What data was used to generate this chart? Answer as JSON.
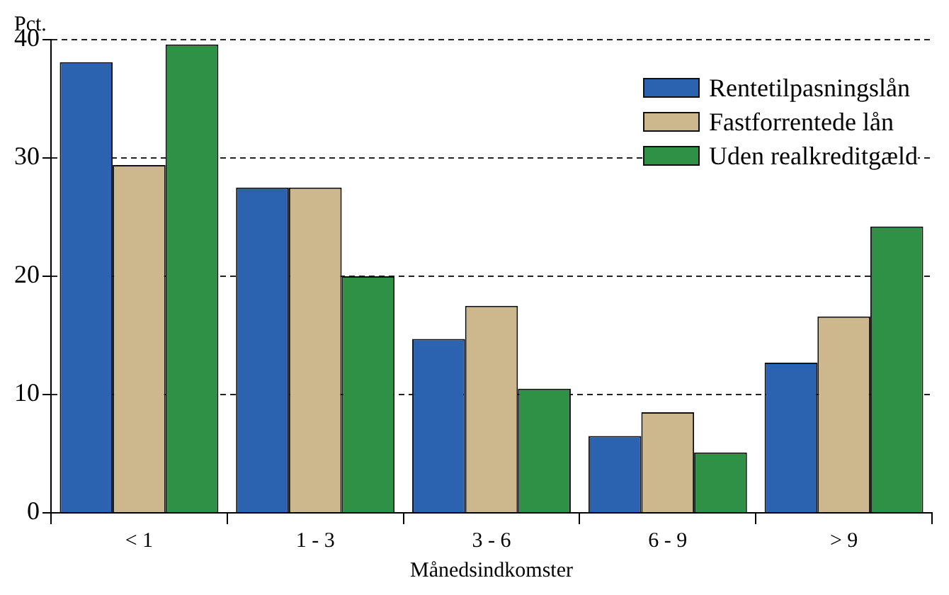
{
  "chart_data": {
    "type": "bar",
    "ylabel": "Pct.",
    "xlabel": "Månedsindkomster",
    "categories": [
      "< 1",
      "1 - 3",
      "3 - 6",
      "6 - 9",
      "> 9"
    ],
    "series": [
      {
        "name": "Rentetilpasningslån",
        "color": "#2b63b0",
        "values": [
          38.1,
          27.5,
          14.7,
          6.5,
          12.7
        ]
      },
      {
        "name": "Fastforrentede lån",
        "color": "#cdb78c",
        "values": [
          29.4,
          27.5,
          17.5,
          8.5,
          16.6
        ]
      },
      {
        "name": "Uden realkreditgæld",
        "color": "#2e9146",
        "values": [
          39.6,
          20.0,
          10.5,
          5.1,
          24.2
        ]
      }
    ],
    "ylim": [
      0,
      40
    ],
    "yticks": [
      0,
      10,
      20,
      30,
      40
    ],
    "grid": "y",
    "legend": "top right"
  }
}
